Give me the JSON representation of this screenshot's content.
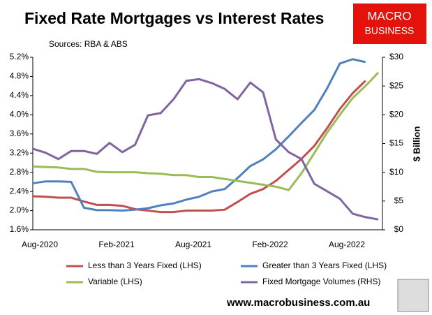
{
  "chart_data": {
    "type": "line",
    "title": "Fixed Rate Mortgages vs Interest Rates",
    "subtitle": "Sources: RBA & ABS",
    "y2label": "$ Billion",
    "logo": [
      "MACRO",
      "BUSINESS"
    ],
    "footer": "www.macrobusiness.com.au",
    "categories": [
      "Aug-2020",
      null,
      null,
      null,
      null,
      null,
      "Feb-2021",
      null,
      null,
      null,
      null,
      null,
      "Aug-2021",
      null,
      null,
      null,
      null,
      null,
      "Feb-2022",
      null,
      null,
      null,
      null,
      null,
      "Aug-2022",
      null,
      null,
      null
    ],
    "series": [
      {
        "name": "Less than 3 Years Fixed (LHS)",
        "color": "#c0504d",
        "values": [
          2.3,
          2.29,
          2.27,
          2.27,
          2.19,
          2.12,
          2.12,
          2.1,
          2.03,
          2.0,
          1.97,
          1.97,
          2.0,
          2.0,
          2.0,
          2.02,
          2.18,
          2.35,
          2.45,
          2.62,
          2.85,
          3.08,
          3.35,
          3.72,
          4.12,
          4.45,
          4.71,
          null
        ]
      },
      {
        "name": "Greater than 3 Years Fixed (LHS)",
        "color": "#4f81bd",
        "values": [
          2.57,
          2.61,
          2.61,
          2.6,
          2.06,
          2.01,
          2.01,
          2.0,
          2.02,
          2.05,
          2.11,
          2.15,
          2.23,
          2.29,
          2.4,
          2.45,
          2.68,
          2.93,
          3.07,
          3.28,
          3.55,
          3.83,
          4.1,
          4.55,
          5.07,
          5.16,
          5.1,
          null
        ]
      },
      {
        "name": "Variable (LHS)",
        "color": "#9bbb59",
        "values": [
          2.92,
          2.91,
          2.9,
          2.87,
          2.87,
          2.81,
          2.8,
          2.8,
          2.8,
          2.78,
          2.77,
          2.74,
          2.74,
          2.7,
          2.7,
          2.66,
          2.62,
          2.58,
          2.54,
          2.5,
          2.43,
          2.78,
          3.2,
          3.63,
          4.0,
          4.35,
          4.6,
          4.88
        ]
      },
      {
        "name": "Fixed Mortgage Volumes (RHS)",
        "color": "#8064a2",
        "axis": "y2",
        "values": [
          14.1,
          13.4,
          12.3,
          13.7,
          13.7,
          13.2,
          15.1,
          13.5,
          14.8,
          19.9,
          20.3,
          22.7,
          25.9,
          26.2,
          25.5,
          24.5,
          22.7,
          25.6,
          23.9,
          15.7,
          13.5,
          12.3,
          8.0,
          6.7,
          5.4,
          2.8,
          2.2,
          1.8
        ]
      }
    ],
    "ylim": [
      1.6,
      5.2
    ],
    "yticks": [
      {
        "value": 1.6,
        "label": "1.6%"
      },
      {
        "value": 2.0,
        "label": "2.0%"
      },
      {
        "value": 2.4,
        "label": "2.4%"
      },
      {
        "value": 2.8,
        "label": "2.8%"
      },
      {
        "value": 3.2,
        "label": "3.2%"
      },
      {
        "value": 3.6,
        "label": "3.6%"
      },
      {
        "value": 4.0,
        "label": "4.0%"
      },
      {
        "value": 4.4,
        "label": "4.4%"
      },
      {
        "value": 4.8,
        "label": "4.8%"
      },
      {
        "value": 5.2,
        "label": "5.2%"
      }
    ],
    "y2lim": [
      0,
      30
    ],
    "y2ticks": [
      {
        "value": 0,
        "label": "$0"
      },
      {
        "value": 5,
        "label": "$5"
      },
      {
        "value": 10,
        "label": "$10"
      },
      {
        "value": 15,
        "label": "$15"
      },
      {
        "value": 20,
        "label": "$20"
      },
      {
        "value": 25,
        "label": "$25"
      },
      {
        "value": 30,
        "label": "$30"
      }
    ],
    "grid": false,
    "legend": "bottom"
  }
}
